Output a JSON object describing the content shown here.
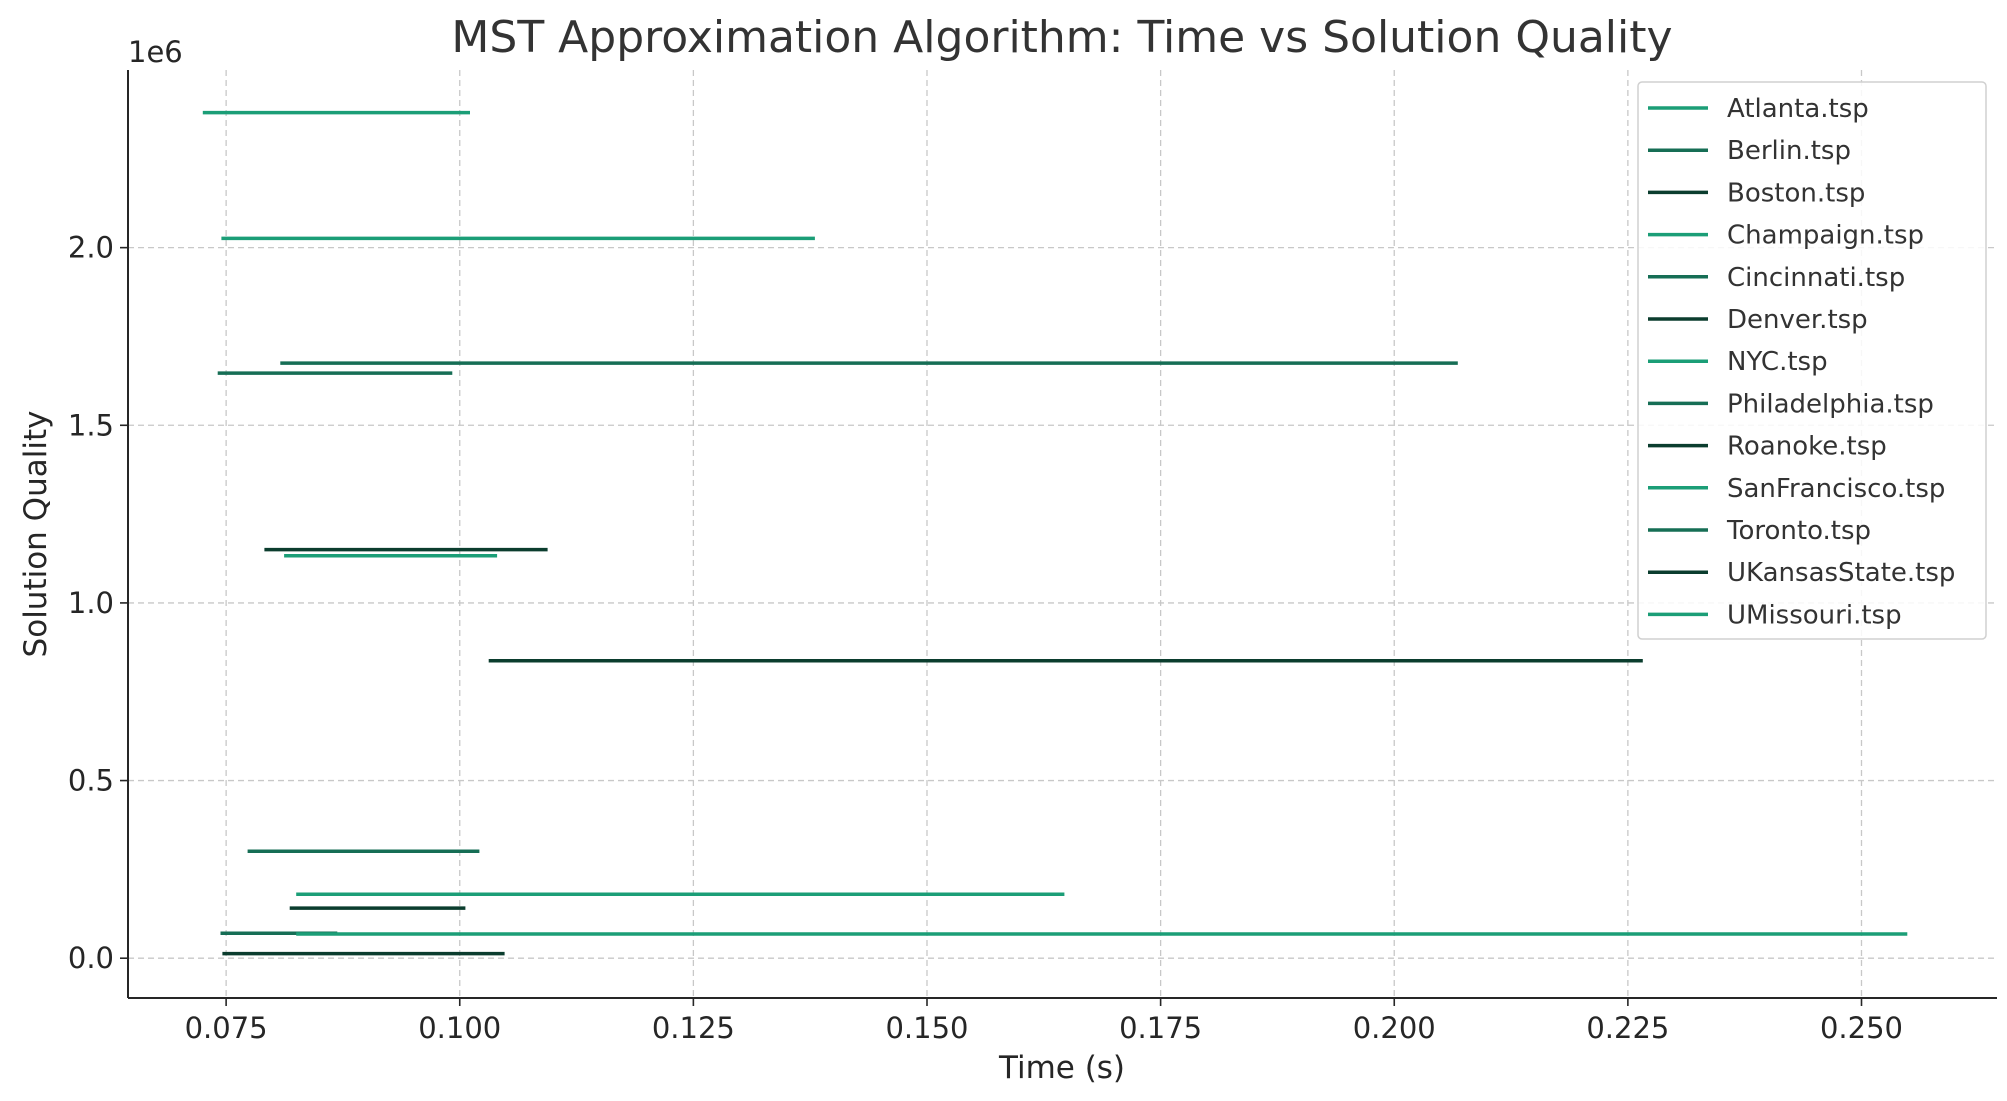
{
  "chart_data": {
    "type": "line",
    "title": "MST Approximation Algorithm: Time vs Solution Quality",
    "xlabel": "Time (s)",
    "ylabel": "Solution Quality",
    "y_offset_label": "1e6",
    "xlim": [
      0.0645,
      0.2645
    ],
    "ylim": [
      -112000,
      2500000
    ],
    "x_ticks": [
      0.075,
      0.1,
      0.125,
      0.15,
      0.175,
      0.2,
      0.225,
      0.25
    ],
    "x_tick_labels": [
      "0.075",
      "0.100",
      "0.125",
      "0.150",
      "0.175",
      "0.200",
      "0.225",
      "0.250"
    ],
    "y_ticks": [
      0,
      500000,
      1000000,
      1500000,
      2000000
    ],
    "y_tick_labels": [
      "0.0",
      "0.5",
      "1.0",
      "1.5",
      "2.0"
    ],
    "grid": true,
    "legend_position": "top-right",
    "colors": [
      "#1b9e77",
      "#166e55",
      "#0b3d2e"
    ],
    "series": [
      {
        "name": "Atlanta.tsp",
        "x": [
          0.0725,
          0.1011
        ],
        "y": [
          2380000,
          2380000
        ]
      },
      {
        "name": "Berlin.tsp",
        "x": [
          0.0808,
          0.2068
        ],
        "y": [
          1675000,
          1675000
        ]
      },
      {
        "name": "Boston.tsp",
        "x": [
          0.1031,
          0.2266
        ],
        "y": [
          837000,
          837000
        ]
      },
      {
        "name": "Champaign.tsp",
        "x": [
          0.0745,
          0.138
        ],
        "y": [
          2026000,
          2026000
        ]
      },
      {
        "name": "Cincinnati.tsp",
        "x": [
          0.0741,
          0.0992
        ],
        "y": [
          1647000,
          1647000
        ]
      },
      {
        "name": "Denver.tsp",
        "x": [
          0.0791,
          0.1094
        ],
        "y": [
          1150000,
          1150000
        ]
      },
      {
        "name": "NYC.tsp",
        "x": [
          0.0812,
          0.104
        ],
        "y": [
          1133000,
          1133000
        ]
      },
      {
        "name": "Philadelphia.tsp",
        "x": [
          0.0773,
          0.1021
        ],
        "y": [
          301000,
          301000
        ]
      },
      {
        "name": "Roanoke.tsp",
        "x": [
          0.0818,
          0.1006
        ],
        "y": [
          141000,
          141000
        ]
      },
      {
        "name": "SanFrancisco.tsp",
        "x": [
          0.0825,
          0.1647
        ],
        "y": [
          180000,
          180000
        ]
      },
      {
        "name": "Toronto.tsp",
        "x": [
          0.0744,
          0.0869
        ],
        "y": [
          70000,
          70000
        ]
      },
      {
        "name": "UKansasState.tsp",
        "x": [
          0.0746,
          0.1048
        ],
        "y": [
          13000,
          13000
        ]
      },
      {
        "name": "UMissouri.tsp",
        "x": [
          0.0825,
          0.2549
        ],
        "y": [
          68000,
          68000
        ]
      }
    ]
  }
}
